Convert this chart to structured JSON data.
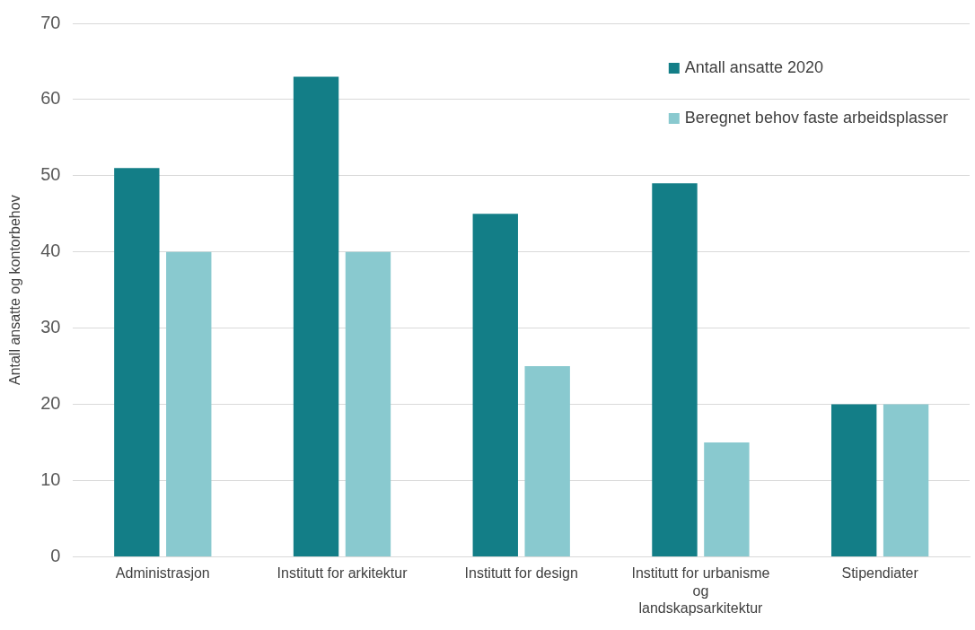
{
  "chart_data": {
    "type": "bar",
    "ylabel": "Antall ansatte og kontorbehov",
    "categories": [
      "Administrasjon",
      "Institutt for arkitektur",
      "Institutt for design",
      "Institutt for urbanisme og landskapsarkitektur",
      "Stipendiater"
    ],
    "series": [
      {
        "name": "Antall ansatte 2020",
        "color": "#137e87",
        "values": [
          51,
          63,
          45,
          49,
          20
        ]
      },
      {
        "name": "Beregnet behov faste arbeidsplasser",
        "color": "#89c9cf",
        "values": [
          40,
          40,
          25,
          15,
          20
        ]
      }
    ],
    "ylim": [
      0,
      70
    ],
    "yticks": [
      0,
      10,
      20,
      30,
      40,
      50,
      60,
      70
    ],
    "grid": "y",
    "legend": "top right"
  }
}
